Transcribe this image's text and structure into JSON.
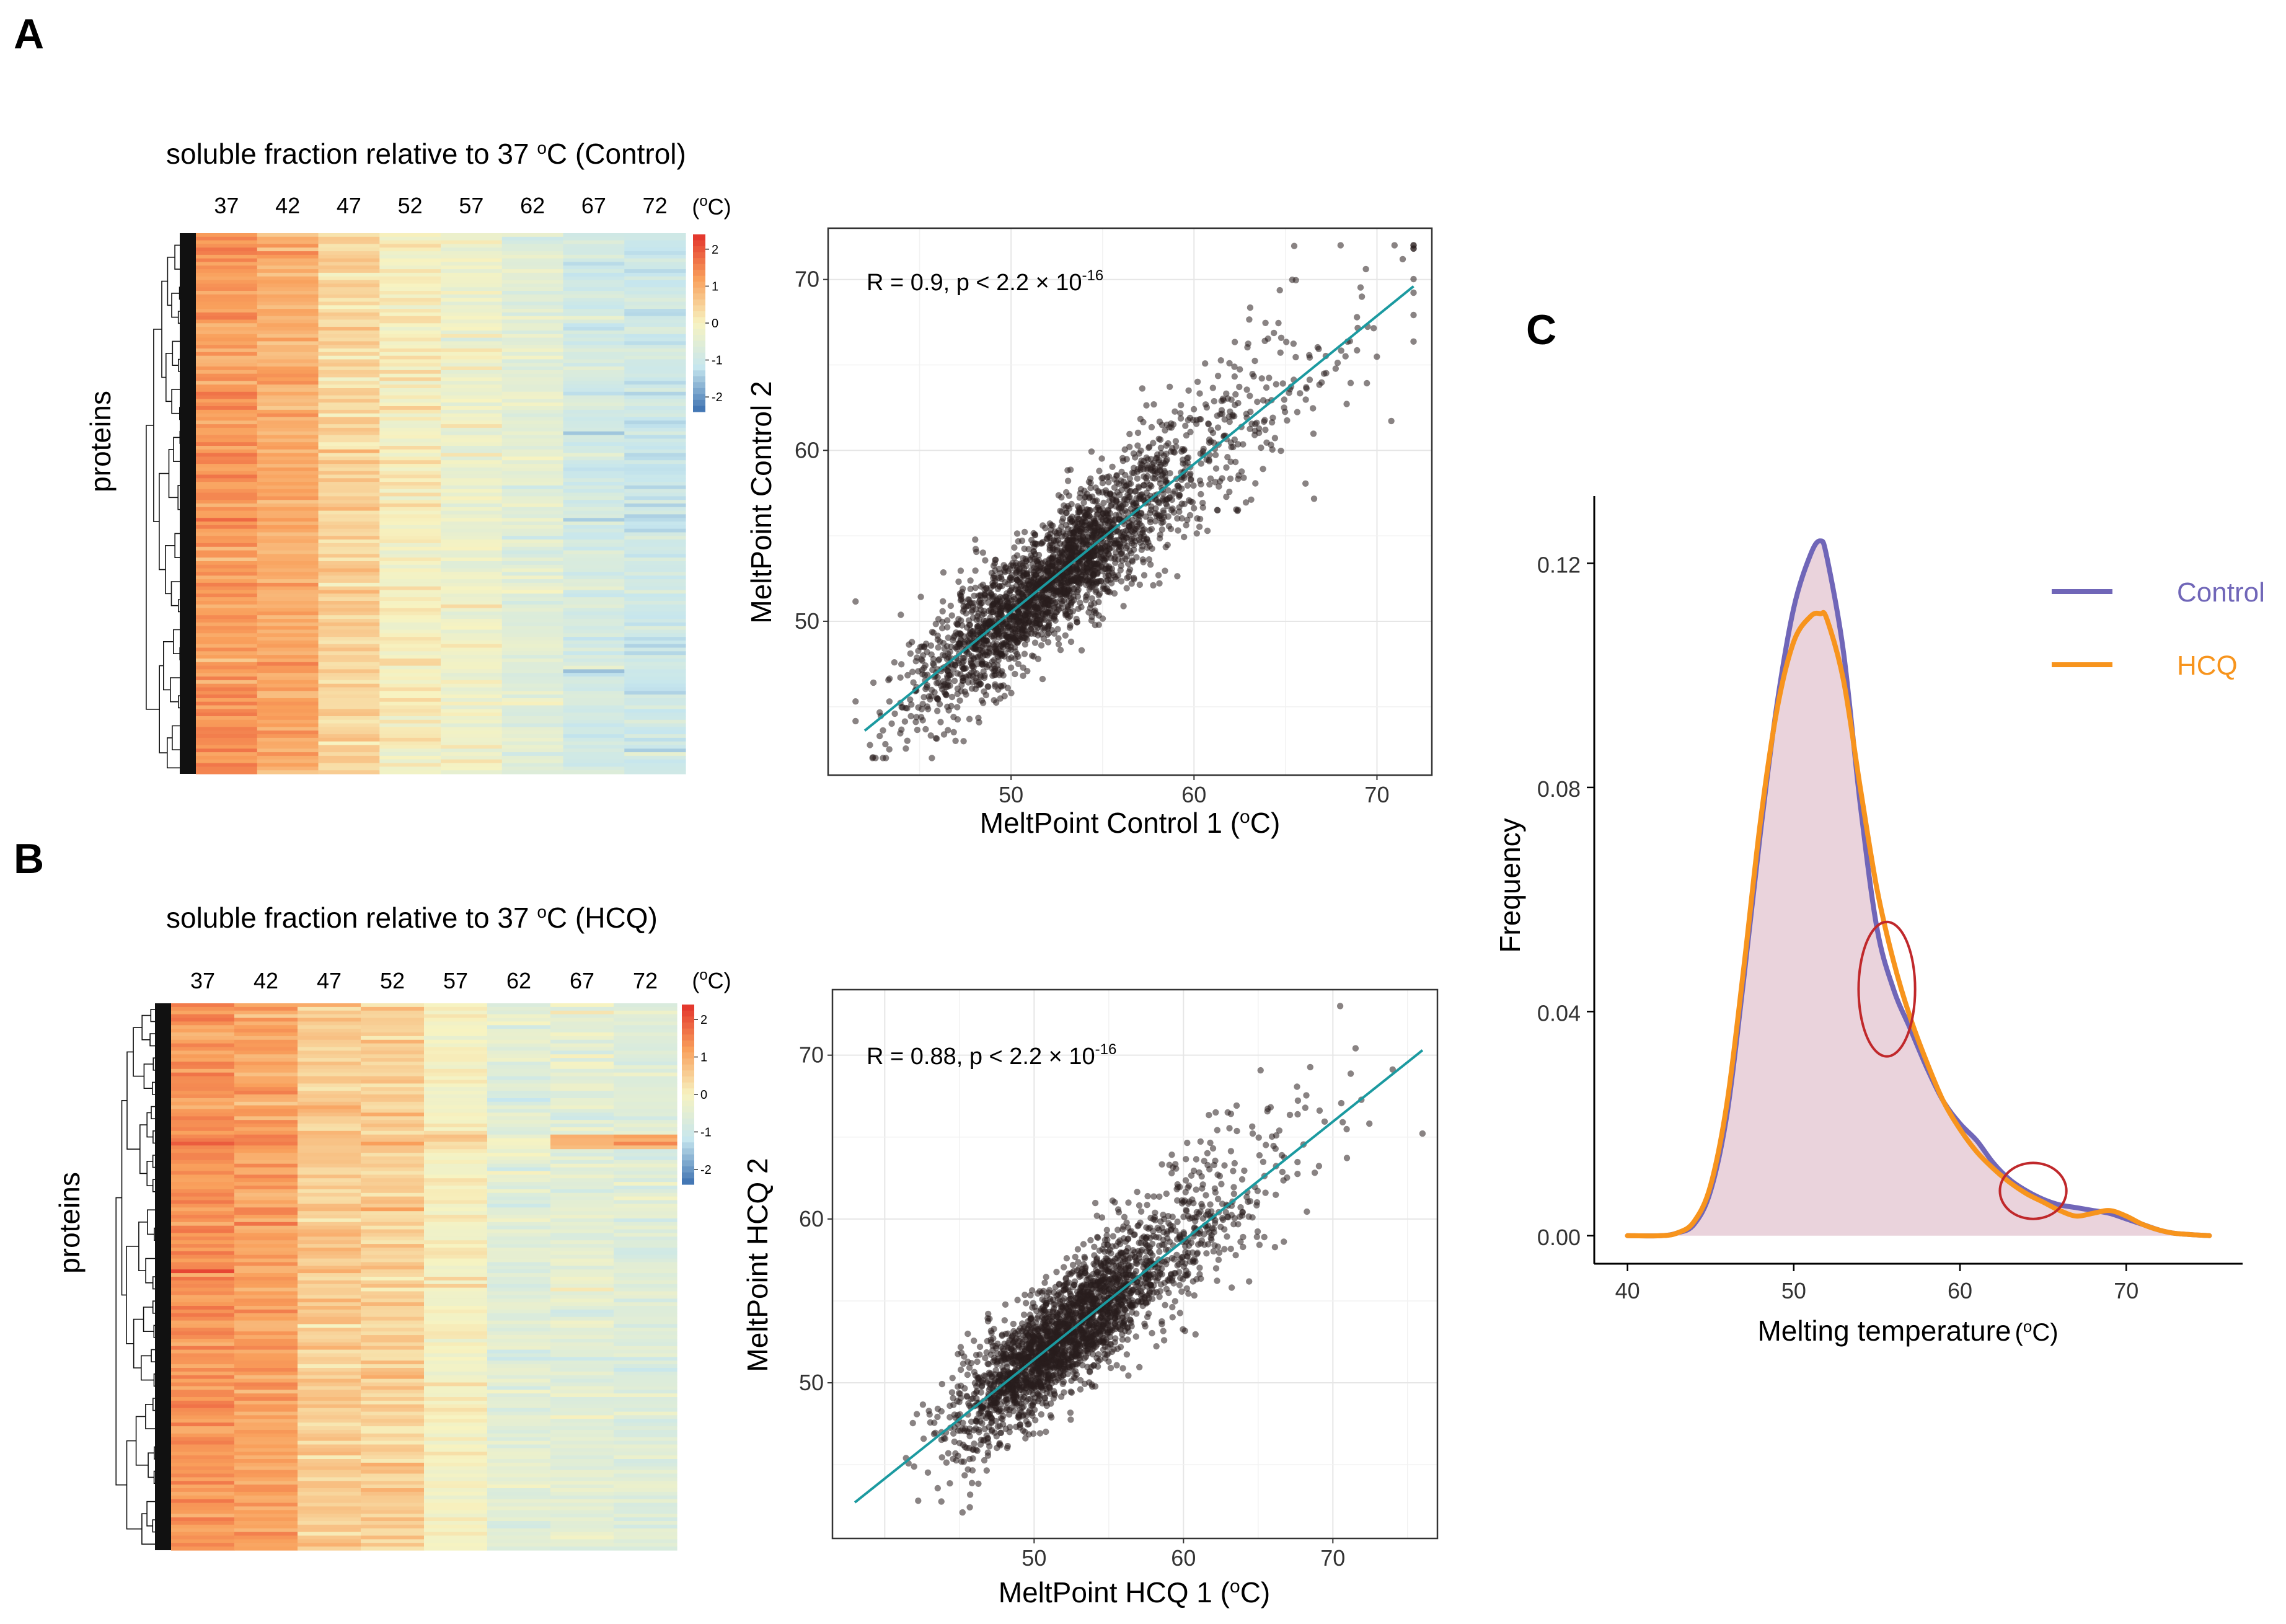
{
  "panel_labels": {
    "a": "A",
    "b": "B",
    "c": "C"
  },
  "chart_data": [
    {
      "id": "heatmap-control",
      "type": "heatmap",
      "title": "soluble fraction relative to 37 °C (Control)",
      "title_parts": {
        "pre": "soluble fraction relative to 37 ",
        "sup": "o",
        "post": "C (Control)"
      },
      "columns": [
        "37",
        "42",
        "47",
        "52",
        "57",
        "62",
        "67",
        "72"
      ],
      "unit_label": {
        "open": "(",
        "sup": "o",
        "close": "C)"
      },
      "row_label": "proteins",
      "colorbar": {
        "ticks": [
          "2",
          "1",
          "0",
          "-1",
          "-2"
        ],
        "range": [
          -2.4,
          2.4
        ],
        "colors": [
          "#3b6fb0",
          "#c6e6ee",
          "#f7f3c1",
          "#f9a05c",
          "#e3322b"
        ]
      },
      "column_means": [
        1.3,
        1.05,
        0.45,
        0.05,
        -0.25,
        -0.55,
        -0.9,
        -1.05
      ]
    },
    {
      "id": "scatter-control",
      "type": "scatter",
      "xlabel": "MeltPoint Control 1",
      "ylabel": "MeltPoint Control 2",
      "unit": {
        "open": "(",
        "sup": "o",
        "close": "C)"
      },
      "xlim": [
        40,
        73
      ],
      "ylim": [
        41,
        73
      ],
      "xticks": [
        50,
        60,
        70
      ],
      "yticks": [
        50,
        60,
        70
      ],
      "annotation": {
        "text": "R = 0.9, p < 2.2 × 10",
        "sup": "-16"
      },
      "fit": {
        "x": [
          42,
          72
        ],
        "y": [
          43.6,
          69.6
        ]
      },
      "cloud": {
        "center": [
          51,
          51
        ],
        "n": 2600,
        "seed": 11
      }
    },
    {
      "id": "heatmap-hcq",
      "type": "heatmap",
      "title": "soluble fraction relative to 37 °C (HCQ)",
      "title_parts": {
        "pre": "soluble fraction relative to 37 ",
        "sup": "o",
        "post": "C (HCQ)"
      },
      "columns": [
        "37",
        "42",
        "47",
        "52",
        "57",
        "62",
        "67",
        "72"
      ],
      "unit_label": {
        "open": "(",
        "sup": "o",
        "close": "C)"
      },
      "row_label": "proteins",
      "colorbar": {
        "ticks": [
          "2",
          "1",
          "0",
          "-1",
          "-2"
        ],
        "range": [
          -2.4,
          2.4
        ],
        "colors": [
          "#3b6fb0",
          "#c6e6ee",
          "#f7f3c1",
          "#f9a05c",
          "#e3322b"
        ]
      },
      "column_means": [
        1.3,
        1.15,
        0.6,
        0.5,
        -0.05,
        -0.5,
        -0.5,
        -0.6
      ]
    },
    {
      "id": "scatter-hcq",
      "type": "scatter",
      "xlabel": "MeltPoint HCQ 1",
      "ylabel": "MeltPoint HCQ 2",
      "unit": {
        "open": "(",
        "sup": "o",
        "close": "C)"
      },
      "xlim": [
        36.5,
        77
      ],
      "ylim": [
        40.5,
        74
      ],
      "xticks": [
        50,
        60,
        70
      ],
      "yticks": [
        50,
        60,
        70
      ],
      "annotation": {
        "text": "R = 0.88, p < 2.2 × 10",
        "sup": "-16"
      },
      "fit": {
        "x": [
          38,
          76
        ],
        "y": [
          42.7,
          70.3
        ]
      },
      "cloud": {
        "center": [
          51,
          51
        ],
        "n": 2600,
        "seed": 23
      }
    },
    {
      "id": "density",
      "type": "line",
      "xlabel": "Melting temperature",
      "xunit": {
        "open": "(",
        "sup": "o",
        "close": "C)"
      },
      "ylabel": "Frequency",
      "xlim": [
        38,
        77
      ],
      "ylim": [
        -0.005,
        0.132
      ],
      "xticks": [
        40,
        50,
        60,
        70
      ],
      "yticks": [
        0.0,
        0.04,
        0.08,
        0.12
      ],
      "ytick_labels": [
        "0.00",
        "0.04",
        "0.08",
        "0.12"
      ],
      "series": [
        {
          "name": "Control",
          "color": "#7066b8",
          "x": [
            40,
            42,
            43,
            44,
            45,
            46,
            47,
            48,
            49,
            50,
            51,
            51.6,
            52,
            53,
            54,
            55,
            56,
            57,
            58,
            59,
            60,
            61,
            62,
            63,
            64,
            65,
            66,
            67,
            68,
            69,
            70,
            71,
            72,
            73,
            75
          ],
          "y": [
            0,
            0,
            0.0005,
            0.002,
            0.008,
            0.022,
            0.046,
            0.072,
            0.095,
            0.112,
            0.1215,
            0.124,
            0.121,
            0.104,
            0.077,
            0.055,
            0.044,
            0.037,
            0.03,
            0.024,
            0.02,
            0.017,
            0.013,
            0.01,
            0.008,
            0.0065,
            0.0055,
            0.005,
            0.0045,
            0.004,
            0.003,
            0.002,
            0.001,
            0.0004,
            0
          ]
        },
        {
          "name": "HCQ",
          "color": "#f7941d",
          "x": [
            40,
            42,
            43,
            44,
            45,
            46,
            47,
            48,
            49,
            50,
            51,
            51.6,
            52,
            53,
            54,
            55,
            56,
            57,
            58,
            59,
            60,
            61,
            62,
            63,
            64,
            65,
            66,
            67,
            68,
            69,
            70,
            71,
            72,
            73,
            75
          ],
          "y": [
            0,
            0,
            0.0005,
            0.0025,
            0.009,
            0.024,
            0.048,
            0.074,
            0.094,
            0.106,
            0.1105,
            0.111,
            0.11,
            0.099,
            0.08,
            0.062,
            0.049,
            0.039,
            0.031,
            0.024,
            0.019,
            0.015,
            0.012,
            0.0095,
            0.0075,
            0.006,
            0.0045,
            0.0035,
            0.004,
            0.0045,
            0.0035,
            0.002,
            0.001,
            0.0004,
            0
          ]
        }
      ],
      "annotations": [
        {
          "cx": 55.6,
          "cy": 0.044,
          "rx": 1.7,
          "ry": 0.012,
          "color": "#c0282b"
        },
        {
          "cx": 64.4,
          "cy": 0.008,
          "rx": 2.0,
          "ry": 0.005,
          "color": "#c0282b"
        }
      ],
      "fill_color": "#ead3dc",
      "legend": {
        "placement": "top-right",
        "items": [
          "Control",
          "HCQ"
        ]
      }
    }
  ]
}
